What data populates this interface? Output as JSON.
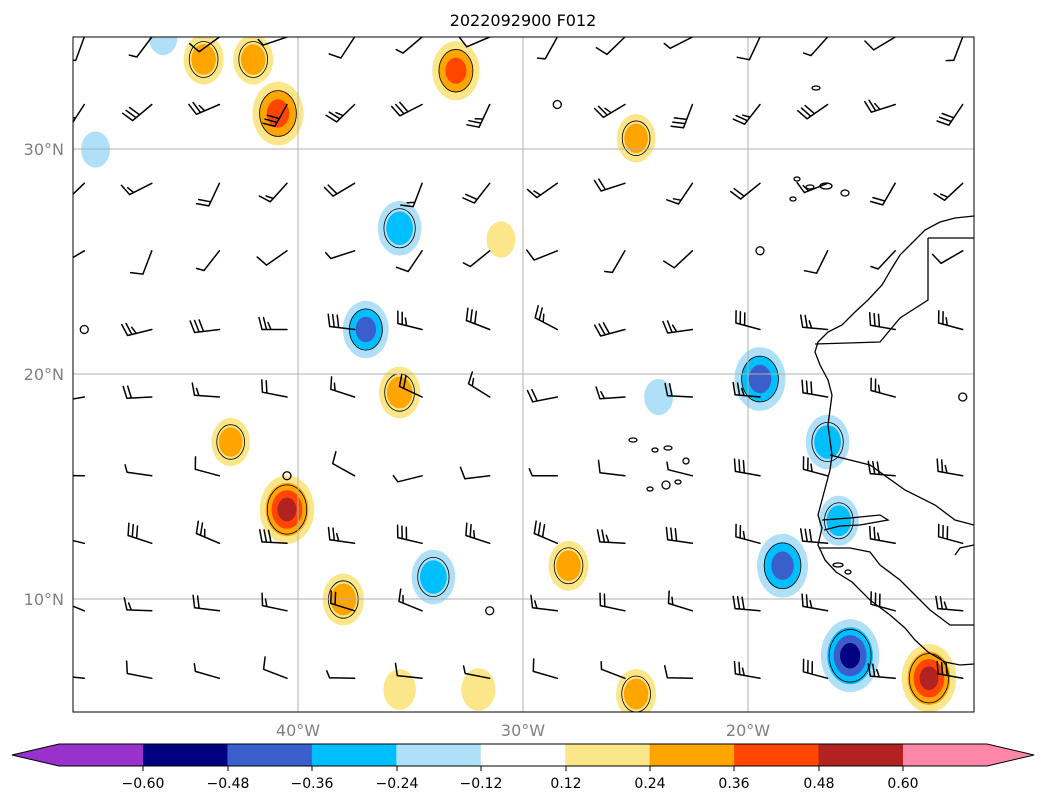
{
  "title": "2022092900 F012",
  "map": {
    "region": "Eastern tropical Atlantic / West Africa",
    "lon_range": [
      -50,
      -10
    ],
    "lat_range": [
      5,
      35
    ],
    "gridlines": true,
    "lat_labels": [
      {
        "lat": 30,
        "text": "30°N"
      },
      {
        "lat": 20,
        "text": "20°N"
      },
      {
        "lat": 10,
        "text": "10°N"
      }
    ],
    "lon_labels": [
      {
        "lon": -40,
        "text": "40°W"
      },
      {
        "lon": -30,
        "text": "30°W"
      },
      {
        "lon": -20,
        "text": "20°W"
      }
    ],
    "field": "shaded contours with wind barbs overlay"
  },
  "colorbar": {
    "extend": "both",
    "under_color": "#9932cc",
    "over_color": "#ff88aa",
    "colors": [
      "#000080",
      "#3a5fcd",
      "#00bfff",
      "#b0e0f8",
      "#ffffff",
      "#fbe78a",
      "#ffa500",
      "#ff4500",
      "#b22222"
    ],
    "ticks": [
      "−0.60",
      "−0.48",
      "−0.36",
      "−0.24",
      "−0.12",
      "0.12",
      "0.24",
      "0.36",
      "0.48",
      "0.60"
    ]
  },
  "blobs": [
    {
      "lon": -40.9,
      "lat": 31.6,
      "value": 0.45
    },
    {
      "lon": -33.0,
      "lat": 33.5,
      "value": 0.4
    },
    {
      "lon": -44.2,
      "lat": 34.0,
      "value": 0.3
    },
    {
      "lon": -42.0,
      "lat": 34.0,
      "value": 0.3
    },
    {
      "lon": -25.0,
      "lat": 30.5,
      "value": 0.28
    },
    {
      "lon": -35.5,
      "lat": 26.5,
      "value": -0.35
    },
    {
      "lon": -31.0,
      "lat": 26.0,
      "value": 0.15
    },
    {
      "lon": -37.0,
      "lat": 22.0,
      "value": -0.38
    },
    {
      "lon": -35.5,
      "lat": 19.2,
      "value": 0.32
    },
    {
      "lon": -43.0,
      "lat": 17.0,
      "value": 0.28
    },
    {
      "lon": -40.5,
      "lat": 14.0,
      "value": 0.5
    },
    {
      "lon": -38.0,
      "lat": 10.0,
      "value": 0.32
    },
    {
      "lon": -34.0,
      "lat": 11.0,
      "value": -0.35
    },
    {
      "lon": -28.0,
      "lat": 11.5,
      "value": 0.3
    },
    {
      "lon": -25.0,
      "lat": 5.8,
      "value": 0.3
    },
    {
      "lon": -35.5,
      "lat": 6.0,
      "value": 0.2
    },
    {
      "lon": -32.0,
      "lat": 6.0,
      "value": 0.22
    },
    {
      "lon": -19.5,
      "lat": 19.8,
      "value": -0.45
    },
    {
      "lon": -24.0,
      "lat": 19.0,
      "value": -0.15
    },
    {
      "lon": -16.5,
      "lat": 17.0,
      "value": -0.35
    },
    {
      "lon": -16.0,
      "lat": 13.5,
      "value": -0.3
    },
    {
      "lon": -18.5,
      "lat": 11.5,
      "value": -0.45
    },
    {
      "lon": -15.5,
      "lat": 7.5,
      "value": -0.55
    },
    {
      "lon": -12.0,
      "lat": 6.5,
      "value": 0.5
    },
    {
      "lon": -49.0,
      "lat": 30.0,
      "value": -0.15
    },
    {
      "lon": -46.0,
      "lat": 35.0,
      "value": -0.15
    }
  ]
}
